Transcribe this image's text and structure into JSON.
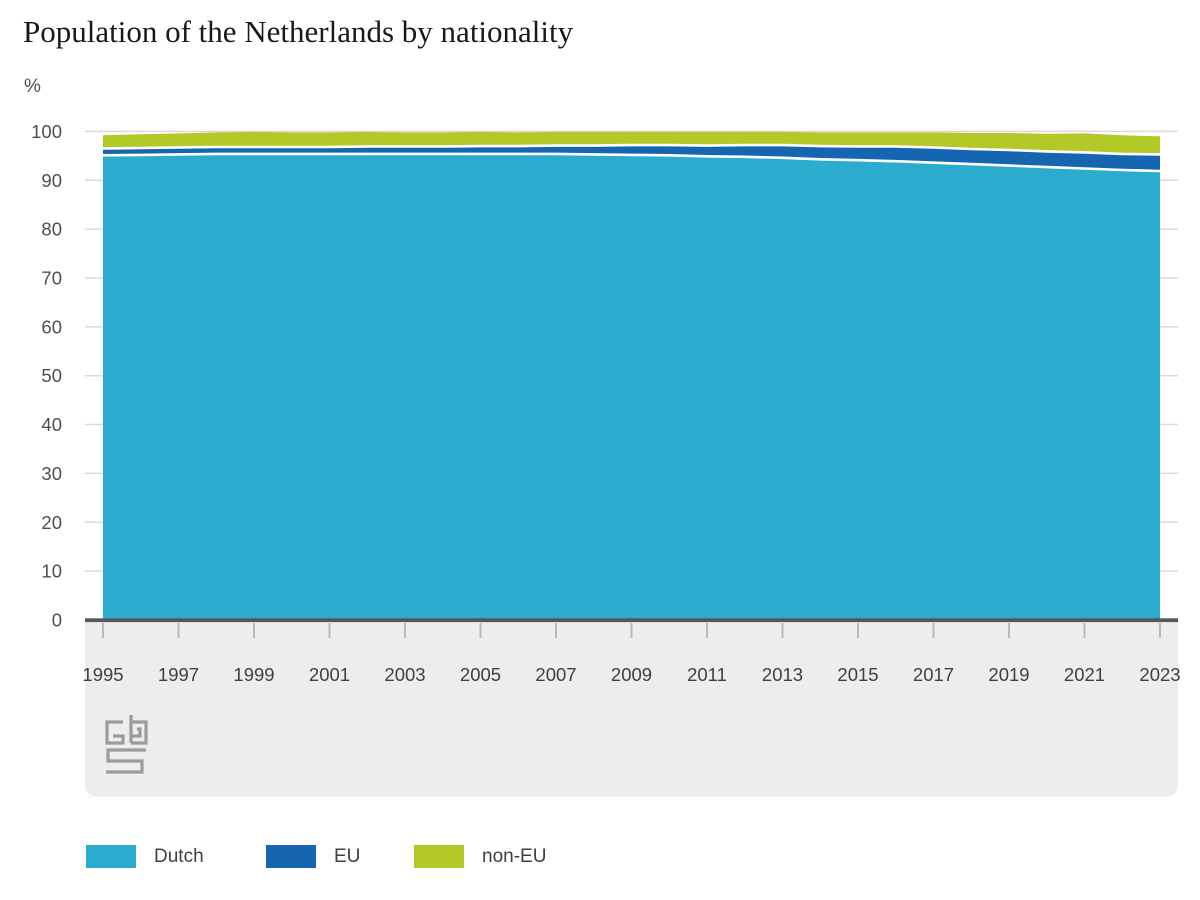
{
  "title": "Population of the Netherlands by nationality",
  "unit_label": "%",
  "legend": [
    {
      "label": "Dutch",
      "color": "#2BACCE"
    },
    {
      "label": "EU",
      "color": "#1565B1"
    },
    {
      "label": "non-EU",
      "color": "#B3C927"
    }
  ],
  "chart_data": {
    "type": "area",
    "stacked": true,
    "title": "Population of the Netherlands by nationality",
    "ylabel": "%",
    "ylim": [
      0,
      100
    ],
    "grid": true,
    "legend_position": "bottom",
    "x": [
      1995,
      1996,
      1997,
      1998,
      1999,
      2000,
      2001,
      2002,
      2003,
      2004,
      2005,
      2006,
      2007,
      2008,
      2009,
      2010,
      2011,
      2012,
      2013,
      2014,
      2015,
      2016,
      2017,
      2018,
      2019,
      2020,
      2021,
      2022,
      2023
    ],
    "series": [
      {
        "name": "Dutch",
        "color": "#2BACCE",
        "values": [
          95.1,
          95.2,
          95.3,
          95.4,
          95.4,
          95.4,
          95.4,
          95.4,
          95.4,
          95.4,
          95.4,
          95.4,
          95.4,
          95.3,
          95.2,
          95.1,
          94.9,
          94.8,
          94.6,
          94.3,
          94.1,
          93.9,
          93.6,
          93.3,
          93.0,
          92.7,
          92.4,
          92.1,
          91.9
        ]
      },
      {
        "name": "EU",
        "color": "#1565B1",
        "values": [
          1.4,
          1.4,
          1.4,
          1.4,
          1.4,
          1.4,
          1.4,
          1.5,
          1.5,
          1.5,
          1.6,
          1.6,
          1.7,
          1.8,
          2.0,
          2.1,
          2.2,
          2.4,
          2.6,
          2.7,
          2.8,
          3.0,
          3.1,
          3.1,
          3.2,
          3.2,
          3.3,
          3.3,
          3.4
        ]
      },
      {
        "name": "non-EU",
        "color": "#B3C927",
        "values": [
          2.7,
          2.8,
          2.9,
          3.0,
          3.1,
          3.0,
          3.0,
          3.0,
          2.9,
          2.9,
          2.9,
          2.8,
          2.8,
          2.8,
          2.7,
          2.7,
          2.8,
          2.7,
          2.7,
          2.8,
          2.9,
          2.9,
          3.1,
          3.3,
          3.5,
          3.6,
          3.9,
          3.8,
          3.7
        ]
      }
    ],
    "xticks": [
      1995,
      1997,
      1999,
      2001,
      2003,
      2005,
      2007,
      2009,
      2011,
      2013,
      2015,
      2017,
      2019,
      2021,
      2023
    ],
    "yticks": [
      0,
      10,
      20,
      30,
      40,
      50,
      60,
      70,
      80,
      90,
      100
    ]
  },
  "colors": {
    "gridline": "#dadada",
    "axis_line": "#55575a",
    "axis_band": "#ededed",
    "tick": "#b9b9b9",
    "ytick_text": "#4e4e4e",
    "xtick_text": "#3f3f3f",
    "separator": "#ffffff",
    "logo": "#9c9c9c"
  },
  "source": {
    "logo_name": "cbs-logo"
  }
}
